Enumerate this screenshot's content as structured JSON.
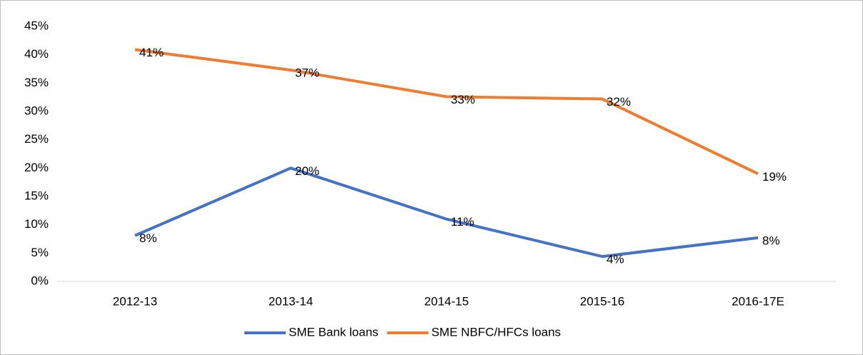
{
  "chart_data": {
    "type": "line",
    "categories": [
      "2012-13",
      "2013-14",
      "2014-15",
      "2015-16",
      "2016-17E"
    ],
    "series": [
      {
        "name": "SME Bank loans",
        "color": "#4472c4",
        "values": [
          8.1,
          20.0,
          11.0,
          4.4,
          7.7
        ],
        "value_labels": [
          "8%",
          "20%",
          "11%",
          "4%",
          "8%"
        ]
      },
      {
        "name": "SME NBFC/HFCs loans",
        "color": "#ed7d31",
        "values": [
          40.9,
          37.3,
          32.6,
          32.2,
          19.0
        ],
        "value_labels": [
          "41%",
          "37%",
          "33%",
          "32%",
          "19%"
        ]
      }
    ],
    "ylim": [
      0,
      45
    ],
    "yticks": [
      {
        "value": 0,
        "label": "0%"
      },
      {
        "value": 5,
        "label": "5%"
      },
      {
        "value": 10,
        "label": "10%"
      },
      {
        "value": 15,
        "label": "15%"
      },
      {
        "value": 20,
        "label": "20%"
      },
      {
        "value": 25,
        "label": "25%"
      },
      {
        "value": 30,
        "label": "30%"
      },
      {
        "value": 35,
        "label": "35%"
      },
      {
        "value": 40,
        "label": "40%"
      },
      {
        "value": 45,
        "label": "45%"
      }
    ],
    "grid": false,
    "legend": "bottom"
  }
}
